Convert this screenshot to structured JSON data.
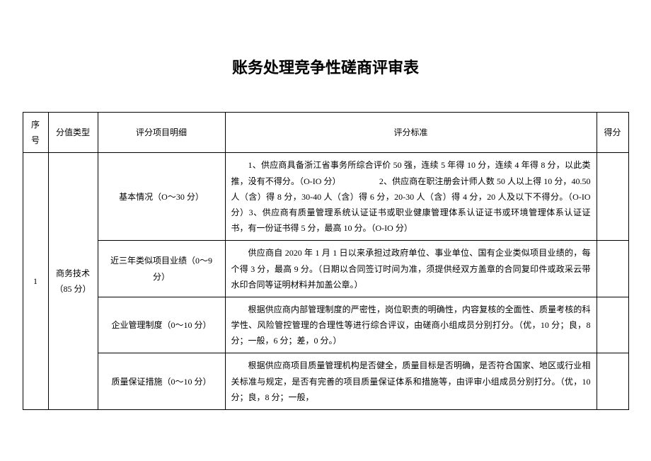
{
  "title": "账务处理竞争性磋商评审表",
  "headers": {
    "seq": "序号",
    "type": "分值类型",
    "item": "评分项目明细",
    "standard": "评分标准",
    "score": "得分"
  },
  "row1": {
    "seq": "1",
    "type": "商务技术（85 分）"
  },
  "items": {
    "basic": {
      "name": "基本情况（O～30 分）",
      "std": "1、供应商具备浙江省事务所综合评价 50 强，连续 5 年得 10 分，连续 4 年得 8 分，以此类推，没有不得分。（O-IO 分）　　　　　2、供应商在职注册会计师人数 50 人以上得 10 分，40.50 人（含）得 8 分，30-40 人（含）得 6 分，20-30 人（含）得 4 分，20 人及以下不得分。（O-IO 分）3、供应商有质量管理系统认证证书或职业健康管理体系认证证书或环境管理体系认证证书，有一份证书得 5 分，最高 10 分。（O-IO 分）"
    },
    "similar": {
      "name": "近三年类似项目业绩（0～9 分）",
      "std": "供应商自 2020 年 1 月 1 日以来承担过政府单位、事业单位、国有企业类似项目业绩的，每个得 3 分，最高 9 分。（日期以合同签订时间为准，须提供经双方盖章的合同复印件或政采云带水印合同等证明材料并加盖公章。）"
    },
    "mgmt": {
      "name": "企业管理制度（0～10 分）",
      "std": "根据供应商内部管理制度的严密性，岗位职责的明确性，内容复核的全面性、质量考核的科学性、风险管控管理的合理性等进行综合评议，由磋商小组成员分别打分。（优，10 分；良，8 分；一般，6 分；差，0 分。）"
    },
    "quality": {
      "name": "质量保证措施（0～10 分）",
      "std": "根据供应商项目质量管理机构是否健全，质量目标是否明确，是否符合国家、地区或行业相关标准与规定，是否有完善的项目质量保证体系和措施等，由评审小组成员分别打分。（优，10 分；良，8 分；一般，"
    }
  }
}
